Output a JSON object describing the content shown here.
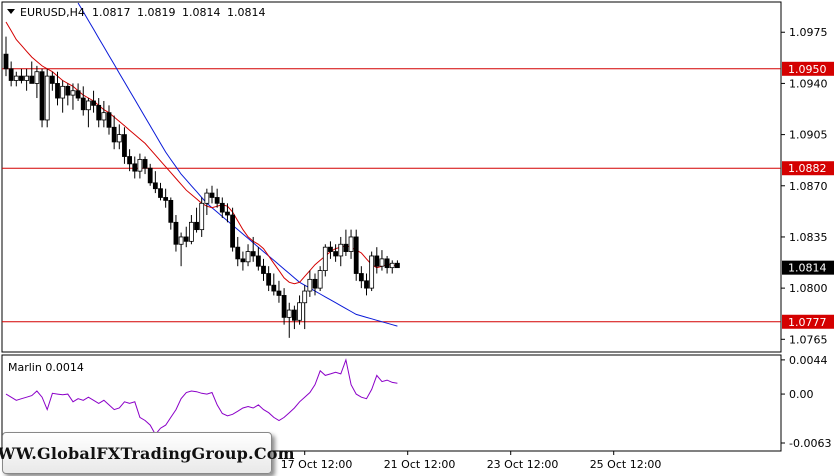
{
  "header": {
    "symbol": "EURUSD,H4",
    "open": "1.0817",
    "high": "1.0819",
    "low": "1.0814",
    "close": "1.0814"
  },
  "colors": {
    "bull_fill": "#ffffff",
    "bear_fill": "#000000",
    "ma_fast": "#d40000",
    "ma_slow": "#0a1ad8",
    "level_line": "#d40000",
    "oscillator": "#8b00c8",
    "current_price_box": "#000000"
  },
  "watermark": {
    "text": "WWW.GlobalFXTradingGroup.Com"
  },
  "chart_data": [
    {
      "type": "candlestick",
      "symbol": "EURUSD",
      "timeframe": "H4",
      "ylim": [
        1.0757,
        1.0995
      ],
      "y_ticks": [
        "1.0975",
        "1.0940",
        "1.0905",
        "1.0870",
        "1.0835",
        "1.0800",
        "1.0765"
      ],
      "x_ticks": [
        "17 Oct 12:00",
        "21 Oct 12:00",
        "23 Oct 12:00",
        "25 Oct 12:00"
      ],
      "x_tick_bar_index": [
        58,
        78,
        98,
        118
      ],
      "levels": [
        {
          "value": 1.095,
          "label": "1.0950"
        },
        {
          "value": 1.0882,
          "label": "1.0882"
        },
        {
          "value": 1.0777,
          "label": "1.0777"
        }
      ],
      "current_price": {
        "value": 1.0814,
        "label": "1.0814"
      },
      "candles": [
        [
          1.096,
          1.0972,
          1.0945,
          1.095
        ],
        [
          1.095,
          1.0955,
          1.0938,
          1.0942
        ],
        [
          1.0942,
          1.0948,
          1.0938,
          1.0945
        ],
        [
          1.0945,
          1.095,
          1.094,
          1.0942
        ],
        [
          1.0942,
          1.095,
          1.0935,
          1.0945
        ],
        [
          1.0945,
          1.0955,
          1.094,
          1.094
        ],
        [
          1.094,
          1.0952,
          1.093,
          1.0948
        ],
        [
          1.0948,
          1.095,
          1.091,
          1.0915
        ],
        [
          1.0915,
          1.095,
          1.091,
          1.0945
        ],
        [
          1.0945,
          1.0948,
          1.0935,
          1.094
        ],
        [
          1.094,
          1.0948,
          1.0925,
          1.093
        ],
        [
          1.093,
          1.0942,
          1.092,
          1.0938
        ],
        [
          1.0938,
          1.094,
          1.0925,
          1.0932
        ],
        [
          1.0932,
          1.094,
          1.0922,
          1.0935
        ],
        [
          1.0935,
          1.094,
          1.0928,
          1.093
        ],
        [
          1.093,
          1.0938,
          1.0918,
          1.0922
        ],
        [
          1.0922,
          1.093,
          1.091,
          1.0928
        ],
        [
          1.0928,
          1.0935,
          1.092,
          1.0925
        ],
        [
          1.0925,
          1.093,
          1.091,
          1.0915
        ],
        [
          1.0915,
          1.0928,
          1.091,
          1.092
        ],
        [
          1.092,
          1.0925,
          1.0905,
          1.091
        ],
        [
          1.091,
          1.0918,
          1.0895,
          1.09
        ],
        [
          1.09,
          1.0912,
          1.0895,
          1.0905
        ],
        [
          1.0905,
          1.091,
          1.0885,
          1.089
        ],
        [
          1.089,
          1.0895,
          1.088,
          1.0885
        ],
        [
          1.0885,
          1.089,
          1.0875,
          1.088
        ],
        [
          1.088,
          1.0892,
          1.0875,
          1.0888
        ],
        [
          1.0888,
          1.089,
          1.0878,
          1.0882
        ],
        [
          1.0882,
          1.0885,
          1.087,
          1.0872
        ],
        [
          1.0872,
          1.088,
          1.0865,
          1.0868
        ],
        [
          1.0868,
          1.0872,
          1.086,
          1.0862
        ],
        [
          1.0862,
          1.0868,
          1.0855,
          1.086
        ],
        [
          1.086,
          1.0862,
          1.084,
          1.0845
        ],
        [
          1.0845,
          1.085,
          1.0825,
          1.083
        ],
        [
          1.083,
          1.0838,
          1.0815,
          1.0835
        ],
        [
          1.0835,
          1.0842,
          1.0828,
          1.0832
        ],
        [
          1.0832,
          1.085,
          1.083,
          1.0845
        ],
        [
          1.0845,
          1.0855,
          1.0838,
          1.084
        ],
        [
          1.084,
          1.0862,
          1.0835,
          1.0858
        ],
        [
          1.0858,
          1.0868,
          1.085,
          1.0865
        ],
        [
          1.0865,
          1.087,
          1.0858,
          1.0862
        ],
        [
          1.0862,
          1.0868,
          1.0855,
          1.0858
        ],
        [
          1.0858,
          1.0862,
          1.0848,
          1.0852
        ],
        [
          1.0852,
          1.0858,
          1.0845,
          1.085
        ],
        [
          1.085,
          1.0855,
          1.0825,
          1.0828
        ],
        [
          1.0828,
          1.0835,
          1.0815,
          1.082
        ],
        [
          1.082,
          1.0825,
          1.0812,
          1.0818
        ],
        [
          1.0818,
          1.083,
          1.0815,
          1.0825
        ],
        [
          1.0825,
          1.0835,
          1.0818,
          1.0822
        ],
        [
          1.0822,
          1.0828,
          1.0812,
          1.0815
        ],
        [
          1.0815,
          1.082,
          1.0805,
          1.081
        ],
        [
          1.081,
          1.0815,
          1.0798,
          1.0802
        ],
        [
          1.0802,
          1.081,
          1.0795,
          1.0798
        ],
        [
          1.0798,
          1.0805,
          1.079,
          1.0795
        ],
        [
          1.0795,
          1.08,
          1.0775,
          1.078
        ],
        [
          1.078,
          1.079,
          1.0766,
          1.0785
        ],
        [
          1.0785,
          1.0788,
          1.0772,
          1.0778
        ],
        [
          1.0778,
          1.0795,
          1.0775,
          1.079
        ],
        [
          1.079,
          1.0802,
          1.0772,
          1.0798
        ],
        [
          1.0798,
          1.0812,
          1.0794,
          1.0806
        ],
        [
          1.0806,
          1.081,
          1.0795,
          1.08
        ],
        [
          1.08,
          1.0815,
          1.0798,
          1.0812
        ],
        [
          1.0812,
          1.083,
          1.0808,
          1.0828
        ],
        [
          1.0828,
          1.0832,
          1.082,
          1.0825
        ],
        [
          1.0825,
          1.083,
          1.0818,
          1.0822
        ],
        [
          1.0822,
          1.0835,
          1.0815,
          1.083
        ],
        [
          1.083,
          1.084,
          1.0822,
          1.0825
        ],
        [
          1.0825,
          1.084,
          1.082,
          1.0835
        ],
        [
          1.0835,
          1.084,
          1.0805,
          1.081
        ],
        [
          1.081,
          1.0815,
          1.08,
          1.0805
        ],
        [
          1.0805,
          1.081,
          1.0795,
          1.08
        ],
        [
          1.08,
          1.0825,
          1.0798,
          1.0822
        ],
        [
          1.0822,
          1.0828,
          1.081,
          1.0815
        ],
        [
          1.0815,
          1.0826,
          1.0812,
          1.082
        ],
        [
          1.082,
          1.0822,
          1.081,
          1.0814
        ],
        [
          1.0814,
          1.0819,
          1.081,
          1.0817
        ],
        [
          1.0817,
          1.0819,
          1.0814,
          1.0814
        ]
      ],
      "ma_fast": [
        1.0982,
        1.0976,
        1.097,
        1.0966,
        1.0962,
        1.0958,
        1.0955,
        1.0952,
        1.095,
        1.0948,
        1.0945,
        1.0942,
        1.094,
        1.0938,
        1.0935,
        1.0932,
        1.093,
        1.0928,
        1.0925,
        1.0922,
        1.092,
        1.0917,
        1.0914,
        1.0911,
        1.0908,
        1.0905,
        1.0902,
        1.0899,
        1.0895,
        1.0891,
        1.0887,
        1.0883,
        1.0879,
        1.0875,
        1.0871,
        1.0867,
        1.0864,
        1.0861,
        1.0858,
        1.0856,
        1.0855,
        1.0856,
        1.0857,
        1.0856,
        1.0852,
        1.0846,
        1.084,
        1.0835,
        1.0832,
        1.083,
        1.0827,
        1.0822,
        1.0817,
        1.0812,
        1.0807,
        1.0804,
        1.0803,
        1.0804,
        1.0808,
        1.0812,
        1.0816,
        1.0819,
        1.0822,
        1.0825,
        1.0827,
        1.0828,
        1.0829,
        1.0828,
        1.0826,
        1.0824,
        1.082,
        1.0816,
        1.0814,
        1.0815,
        1.0816,
        1.0816,
        1.0815
      ],
      "ma_slow": [
        1.0995,
        1.0989,
        1.0983,
        1.0977,
        1.0971,
        1.0965,
        1.0959,
        1.0953,
        1.0947,
        1.0941,
        1.0935,
        1.0929,
        1.0923,
        1.0917,
        1.0911,
        1.0905,
        1.0899,
        1.0893,
        1.0888,
        1.0883,
        1.0878,
        1.0874,
        1.087,
        1.0866,
        1.0862,
        1.0858,
        1.0855,
        1.0852,
        1.0849,
        1.0846,
        1.0843,
        1.084,
        1.0837,
        1.0834,
        1.0831,
        1.0828,
        1.0825,
        1.0822,
        1.0819,
        1.0816,
        1.0813,
        1.081,
        1.0807,
        1.0804,
        1.0802,
        1.08,
        1.0798,
        1.0796,
        1.0794,
        1.0792,
        1.079,
        1.0788,
        1.0786,
        1.0784,
        1.0782,
        1.0781,
        1.078,
        1.0779,
        1.0778,
        1.0777,
        1.0776,
        1.0775,
        1.0774
      ],
      "ma_slow_start_index": 14
    },
    {
      "type": "line",
      "indicator": "Marlin",
      "label": "Marlin 0.0014",
      "ylim": [
        -0.0072,
        0.0049
      ],
      "y_ticks": [
        "0.0044",
        "0.00",
        "-0.0063"
      ],
      "values": [
        0.0,
        -0.0004,
        -0.0008,
        -0.0006,
        -0.0004,
        -0.0002,
        0.0004,
        -0.0004,
        -0.002,
        0.0001,
        0.0,
        -0.0001,
        0.0,
        -0.001,
        -0.0006,
        -0.0008,
        -0.0004,
        -0.0008,
        -0.0012,
        -0.0008,
        -0.0014,
        -0.002,
        -0.0018,
        -0.001,
        -0.0012,
        -0.001,
        -0.003,
        -0.0034,
        -0.004,
        -0.0052,
        -0.0044,
        -0.004,
        -0.003,
        -0.002,
        -0.0006,
        0.0002,
        0.0004,
        0.0003,
        0.0001,
        0.0,
        0.0002,
        -0.0014,
        -0.0025,
        -0.0028,
        -0.0026,
        -0.0022,
        -0.0018,
        -0.0016,
        -0.0018,
        -0.0014,
        -0.002,
        -0.0024,
        -0.003,
        -0.0034,
        -0.003,
        -0.0024,
        -0.0018,
        -0.001,
        -0.0004,
        0.0002,
        0.0012,
        0.003,
        0.0024,
        0.0026,
        0.0028,
        0.0026,
        0.0044,
        0.0012,
        0.0,
        -0.0004,
        -0.0006,
        0.0006,
        0.0024,
        0.0016,
        0.0018,
        0.0015,
        0.0014
      ]
    }
  ]
}
